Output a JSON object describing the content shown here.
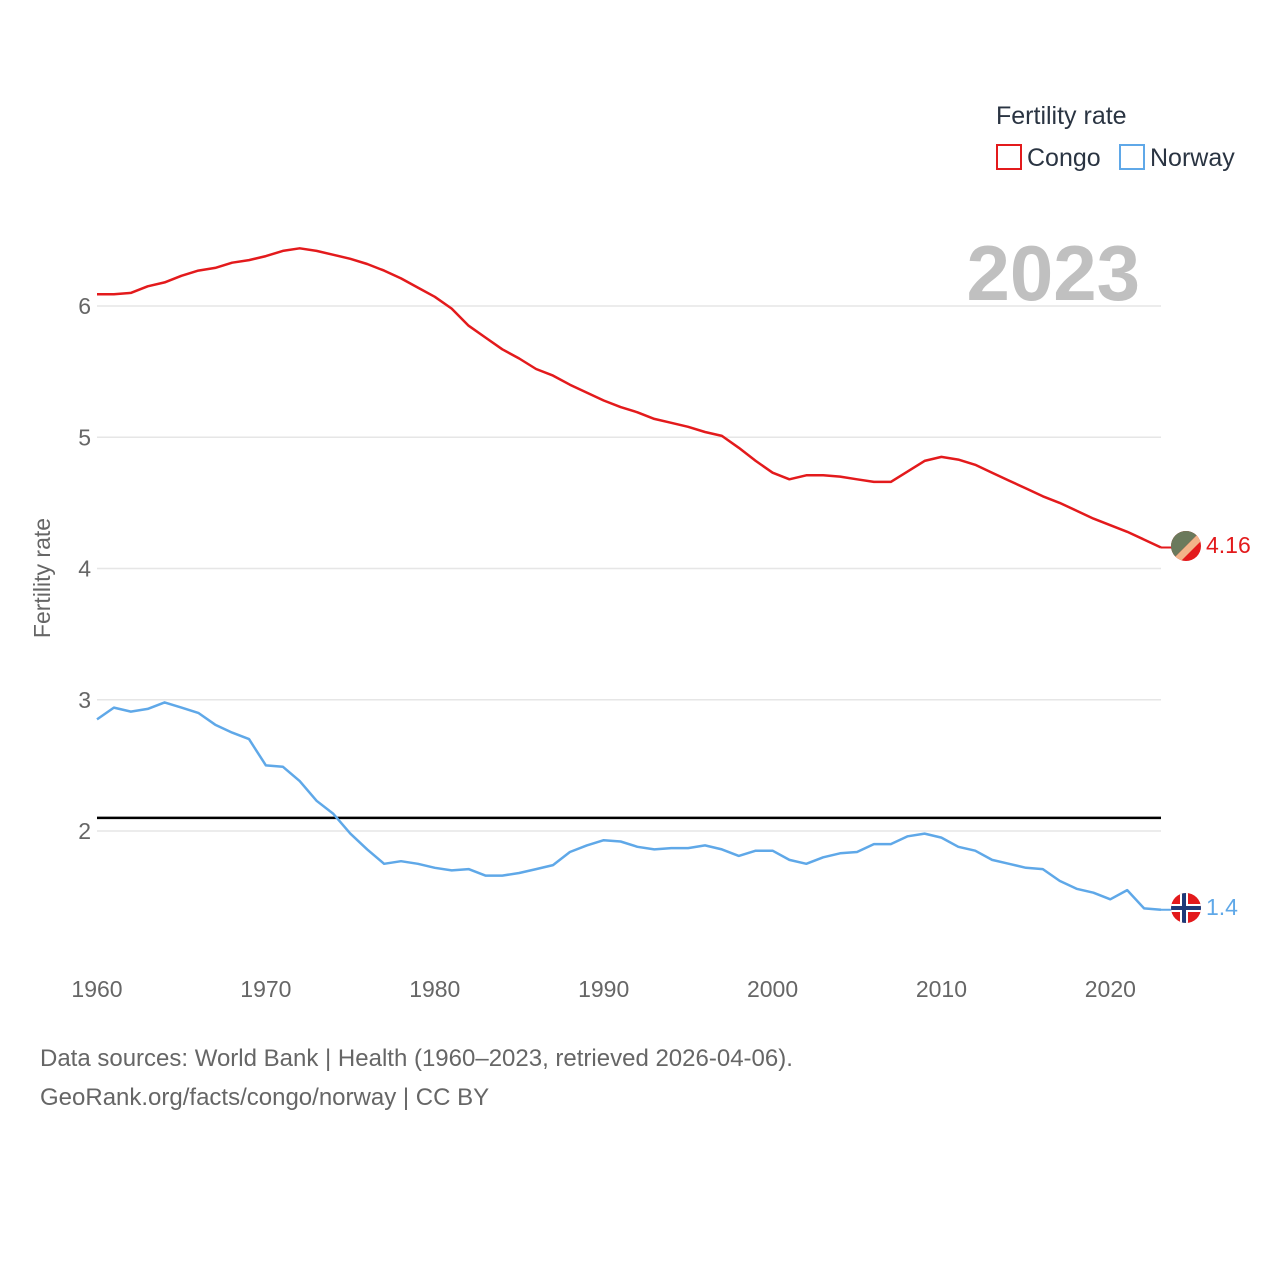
{
  "chart_data": {
    "type": "line",
    "title": "Fertility rate",
    "current_year": "2023",
    "ylabel": "Fertility rate",
    "xlabel": "",
    "xlim": [
      1960,
      2023
    ],
    "ylim": [
      1.0,
      6.8
    ],
    "x_ticks": [
      "1960",
      "1970",
      "1980",
      "1990",
      "2000",
      "2010",
      "2020"
    ],
    "y_ticks": [
      "2",
      "3",
      "4",
      "5",
      "6"
    ],
    "reference_line": 2.1,
    "series": [
      {
        "name": "Congo",
        "color": "#e31a1c",
        "end_label": "4.16",
        "x": [
          1960,
          1961,
          1962,
          1963,
          1964,
          1965,
          1966,
          1967,
          1968,
          1969,
          1970,
          1971,
          1972,
          1973,
          1974,
          1975,
          1976,
          1977,
          1978,
          1979,
          1980,
          1981,
          1982,
          1983,
          1984,
          1985,
          1986,
          1987,
          1988,
          1989,
          1990,
          1991,
          1992,
          1993,
          1994,
          1995,
          1996,
          1997,
          1998,
          1999,
          2000,
          2001,
          2002,
          2003,
          2004,
          2005,
          2006,
          2007,
          2008,
          2009,
          2010,
          2011,
          2012,
          2013,
          2014,
          2015,
          2016,
          2017,
          2018,
          2019,
          2020,
          2021,
          2022,
          2023
        ],
        "values": [
          6.09,
          6.09,
          6.1,
          6.15,
          6.18,
          6.23,
          6.27,
          6.29,
          6.33,
          6.35,
          6.38,
          6.42,
          6.44,
          6.42,
          6.39,
          6.36,
          6.32,
          6.27,
          6.21,
          6.14,
          6.07,
          5.98,
          5.85,
          5.76,
          5.67,
          5.6,
          5.52,
          5.47,
          5.4,
          5.34,
          5.28,
          5.23,
          5.19,
          5.14,
          5.11,
          5.08,
          5.04,
          5.01,
          4.92,
          4.82,
          4.73,
          4.68,
          4.71,
          4.71,
          4.7,
          4.68,
          4.66,
          4.66,
          4.74,
          4.82,
          4.85,
          4.83,
          4.79,
          4.73,
          4.67,
          4.61,
          4.55,
          4.5,
          4.44,
          4.38,
          4.33,
          4.28,
          4.22,
          4.16
        ]
      },
      {
        "name": "Norway",
        "color": "#5fa8e8",
        "end_label": "1.4",
        "x": [
          1960,
          1961,
          1962,
          1963,
          1964,
          1965,
          1966,
          1967,
          1968,
          1969,
          1970,
          1971,
          1972,
          1973,
          1974,
          1975,
          1976,
          1977,
          1978,
          1979,
          1980,
          1981,
          1982,
          1983,
          1984,
          1985,
          1986,
          1987,
          1988,
          1989,
          1990,
          1991,
          1992,
          1993,
          1994,
          1995,
          1996,
          1997,
          1998,
          1999,
          2000,
          2001,
          2002,
          2003,
          2004,
          2005,
          2006,
          2007,
          2008,
          2009,
          2010,
          2011,
          2012,
          2013,
          2014,
          2015,
          2016,
          2017,
          2018,
          2019,
          2020,
          2021,
          2022,
          2023
        ],
        "values": [
          2.85,
          2.94,
          2.91,
          2.93,
          2.98,
          2.94,
          2.9,
          2.81,
          2.75,
          2.7,
          2.5,
          2.49,
          2.38,
          2.23,
          2.13,
          1.98,
          1.86,
          1.75,
          1.77,
          1.75,
          1.72,
          1.7,
          1.71,
          1.66,
          1.66,
          1.68,
          1.71,
          1.74,
          1.84,
          1.89,
          1.93,
          1.92,
          1.88,
          1.86,
          1.87,
          1.87,
          1.89,
          1.86,
          1.81,
          1.85,
          1.85,
          1.78,
          1.75,
          1.8,
          1.83,
          1.84,
          1.9,
          1.9,
          1.96,
          1.98,
          1.95,
          1.88,
          1.85,
          1.78,
          1.75,
          1.72,
          1.71,
          1.62,
          1.56,
          1.53,
          1.48,
          1.55,
          1.41,
          1.4
        ]
      }
    ]
  },
  "legend": {
    "title": "Fertility rate",
    "items": [
      "Congo",
      "Norway"
    ]
  },
  "footer": {
    "line1": "Data sources: World Bank | Health (1960–2023, retrieved 2026-04-06).",
    "line2": "GeoRank.org/facts/congo/norway | CC BY"
  }
}
